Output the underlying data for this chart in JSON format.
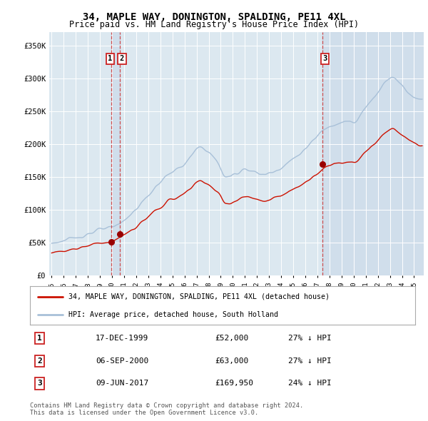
{
  "title": "34, MAPLE WAY, DONINGTON, SPALDING, PE11 4XL",
  "subtitle": "Price paid vs. HM Land Registry's House Price Index (HPI)",
  "legend_line1": "34, MAPLE WAY, DONINGTON, SPALDING, PE11 4XL (detached house)",
  "legend_line2": "HPI: Average price, detached house, South Holland",
  "sale_points": [
    {
      "label": "1",
      "date_num": 1999.96,
      "price": 52000,
      "date_str": "17-DEC-1999",
      "pct": "27% ↓ HPI"
    },
    {
      "label": "2",
      "date_num": 2000.67,
      "price": 63000,
      "date_str": "06-SEP-2000",
      "pct": "27% ↓ HPI"
    },
    {
      "label": "3",
      "date_num": 2017.44,
      "price": 169950,
      "date_str": "09-JUN-2017",
      "pct": "24% ↓ HPI"
    }
  ],
  "hpi_line_color": "#a8c0d8",
  "property_line_color": "#cc1100",
  "sale_marker_color": "#990000",
  "vline_color": "#cc3333",
  "shade_color": "#c8d8e8",
  "shade_alpha": 0.5,
  "plot_background": "#dce8f0",
  "grid_color": "#ffffff",
  "footer_text": "Contains HM Land Registry data © Crown copyright and database right 2024.\nThis data is licensed under the Open Government Licence v3.0.",
  "ylim": [
    0,
    370000
  ],
  "yticks": [
    0,
    50000,
    100000,
    150000,
    200000,
    250000,
    300000,
    350000
  ],
  "ytick_labels": [
    "£0",
    "£50K",
    "£100K",
    "£150K",
    "£200K",
    "£250K",
    "£300K",
    "£350K"
  ],
  "xlim_start": 1994.8,
  "xlim_end": 2025.8,
  "hpi_anchors_t": [
    1995.0,
    1995.5,
    1996.0,
    1996.5,
    1997.0,
    1997.5,
    1998.0,
    1998.5,
    1999.0,
    1999.5,
    2000.0,
    2000.5,
    2001.0,
    2001.5,
    2002.0,
    2002.5,
    2003.0,
    2003.5,
    2004.0,
    2004.5,
    2005.0,
    2005.5,
    2006.0,
    2006.5,
    2007.0,
    2007.3,
    2007.6,
    2008.0,
    2008.5,
    2009.0,
    2009.3,
    2009.6,
    2010.0,
    2010.5,
    2011.0,
    2011.5,
    2012.0,
    2012.5,
    2013.0,
    2013.5,
    2014.0,
    2014.5,
    2015.0,
    2015.5,
    2016.0,
    2016.5,
    2017.0,
    2017.5,
    2018.0,
    2018.5,
    2019.0,
    2019.5,
    2020.0,
    2020.3,
    2020.6,
    2021.0,
    2021.5,
    2022.0,
    2022.5,
    2023.0,
    2023.3,
    2023.6,
    2024.0,
    2024.5,
    2025.0,
    2025.5
  ],
  "hpi_anchors_p": [
    50000,
    51500,
    53000,
    55000,
    58000,
    61000,
    64000,
    67000,
    70000,
    71000,
    73000,
    78000,
    85000,
    93000,
    101000,
    112000,
    122000,
    132000,
    143000,
    152000,
    158000,
    163000,
    170000,
    180000,
    192000,
    195000,
    194000,
    188000,
    178000,
    163000,
    152000,
    150000,
    153000,
    158000,
    163000,
    160000,
    156000,
    154000,
    156000,
    160000,
    165000,
    171000,
    178000,
    185000,
    193000,
    202000,
    212000,
    222000,
    228000,
    232000,
    234000,
    235000,
    232000,
    236000,
    245000,
    255000,
    268000,
    280000,
    292000,
    300000,
    302000,
    298000,
    290000,
    280000,
    272000,
    268000
  ],
  "prop_anchors_t": [
    1995.0,
    1995.5,
    1996.0,
    1996.5,
    1997.0,
    1997.5,
    1998.0,
    1998.5,
    1999.0,
    1999.5,
    2000.0,
    2000.5,
    2001.0,
    2001.5,
    2002.0,
    2002.5,
    2003.0,
    2003.5,
    2004.0,
    2004.5,
    2005.0,
    2005.5,
    2006.0,
    2006.5,
    2007.0,
    2007.3,
    2007.6,
    2008.0,
    2008.5,
    2009.0,
    2009.3,
    2009.6,
    2010.0,
    2010.5,
    2011.0,
    2011.5,
    2012.0,
    2012.5,
    2013.0,
    2013.5,
    2014.0,
    2014.5,
    2015.0,
    2015.5,
    2016.0,
    2016.5,
    2017.0,
    2017.5,
    2018.0,
    2018.5,
    2019.0,
    2019.5,
    2020.0,
    2020.3,
    2020.6,
    2021.0,
    2021.5,
    2022.0,
    2022.5,
    2023.0,
    2023.3,
    2023.6,
    2024.0,
    2024.5,
    2025.0,
    2025.5
  ],
  "prop_anchors_p": [
    36000,
    37000,
    38000,
    39500,
    41000,
    43500,
    46000,
    48500,
    50500,
    51000,
    52000,
    56500,
    62000,
    68000,
    74000,
    82000,
    89000,
    97000,
    104000,
    112000,
    116000,
    120000,
    125000,
    133000,
    142000,
    144500,
    143000,
    138500,
    130000,
    120000,
    112000,
    110000,
    112000,
    116000,
    120000,
    118000,
    115000,
    113000,
    115000,
    118000,
    122000,
    126000,
    131000,
    136000,
    142000,
    149000,
    156000,
    163000,
    168000,
    171000,
    172000,
    173000,
    171000,
    174000,
    180000,
    188000,
    197000,
    206000,
    215000,
    221000,
    223000,
    220000,
    214000,
    207000,
    201000,
    198000
  ]
}
